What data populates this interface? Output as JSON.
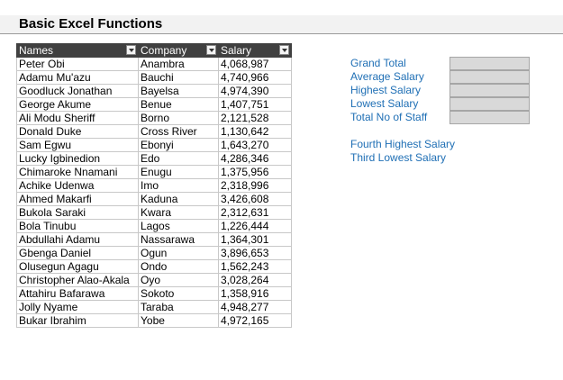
{
  "title": "Basic Excel Functions",
  "table": {
    "headers": [
      "Names",
      "Company",
      "Salary"
    ],
    "rows": [
      [
        "Peter Obi",
        "Anambra",
        "4,068,987"
      ],
      [
        "Adamu Mu'azu",
        "Bauchi",
        "4,740,966"
      ],
      [
        "Goodluck Jonathan",
        "Bayelsa",
        "4,974,390"
      ],
      [
        "George Akume",
        "Benue",
        "1,407,751"
      ],
      [
        "Ali Modu Sheriff",
        "Borno",
        "2,121,528"
      ],
      [
        "Donald Duke",
        "Cross River",
        "1,130,642"
      ],
      [
        "Sam Egwu",
        "Ebonyi",
        "1,643,270"
      ],
      [
        "Lucky Igbinedion",
        "Edo",
        "4,286,346"
      ],
      [
        "Chimaroke Nnamani",
        "Enugu",
        "1,375,956"
      ],
      [
        "Achike Udenwa",
        "Imo",
        "2,318,996"
      ],
      [
        "Ahmed Makarfi",
        "Kaduna",
        "3,426,608"
      ],
      [
        "Bukola Saraki",
        "Kwara",
        "2,312,631"
      ],
      [
        "Bola Tinubu",
        "Lagos",
        "1,226,444"
      ],
      [
        "Abdullahi Adamu",
        "Nassarawa",
        "1,364,301"
      ],
      [
        "Gbenga Daniel",
        "Ogun",
        "3,896,653"
      ],
      [
        "Olusegun Agagu",
        "Ondo",
        "1,562,243"
      ],
      [
        "Christopher Alao-Akala",
        "Oyo",
        "3,028,264"
      ],
      [
        "Attahiru Bafarawa",
        "Sokoto",
        "1,358,916"
      ],
      [
        "Jolly Nyame",
        "Taraba",
        "4,948,277"
      ],
      [
        "Bukar Ibrahim",
        "Yobe",
        "4,972,165"
      ]
    ]
  },
  "summary": {
    "labels": [
      "Grand Total",
      "Average Salary",
      "Highest Salary",
      "Lowest Salary",
      "Total No of Staff"
    ],
    "values": [
      "",
      "",
      "",
      "",
      ""
    ]
  },
  "extra": {
    "labels": [
      "Fourth Highest Salary",
      "Third Lowest Salary"
    ]
  },
  "colors": {
    "header_bg": "#404040",
    "label_blue": "#1f6fb5",
    "input_box": "#d9d9d9"
  }
}
